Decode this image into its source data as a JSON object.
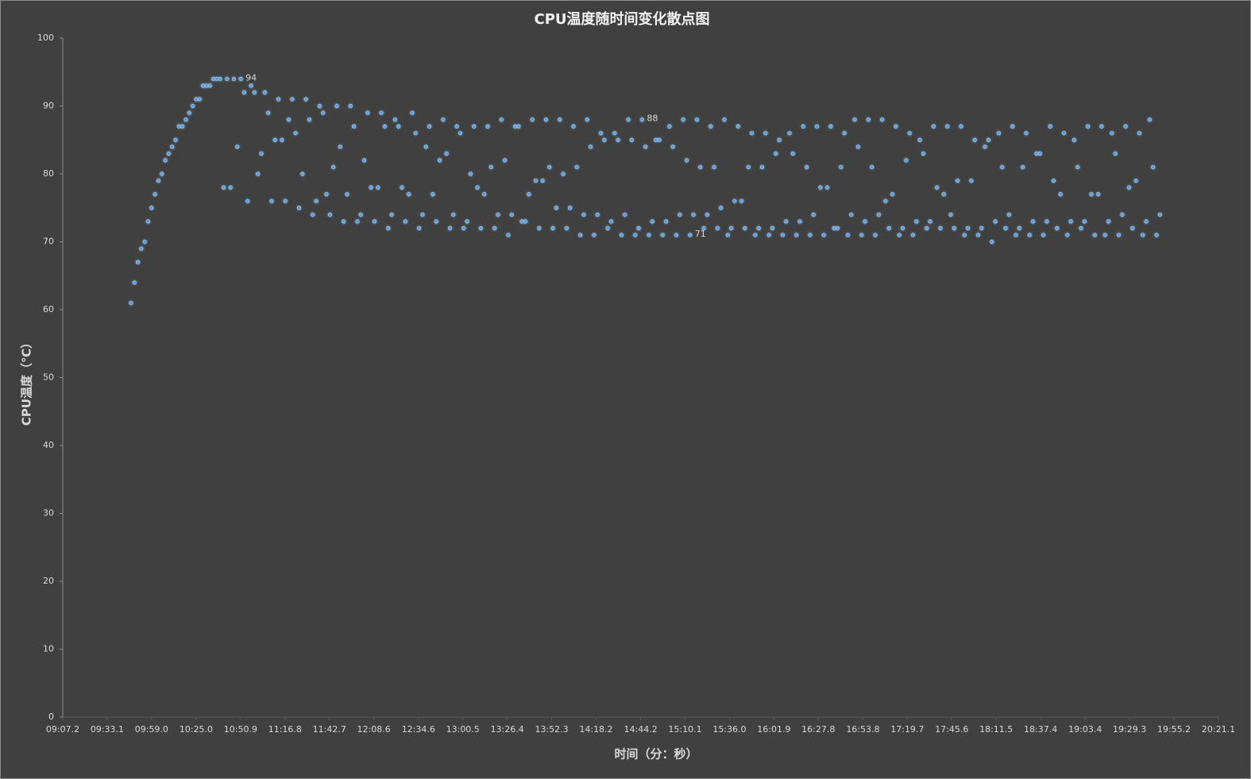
{
  "chart_data": {
    "type": "scatter",
    "title": "CPU温度随时间变化散点图",
    "x_label": "时间（分：秒）",
    "y_label": "CPU温度（℃）",
    "color": "#5b9bd5",
    "xlim": [
      547.2,
      1221.1
    ],
    "xticks": [
      {
        "value": 547.2,
        "label": "09:07.2"
      },
      {
        "value": 573.1,
        "label": "09:33.1"
      },
      {
        "value": 599.0,
        "label": "09:59.0"
      },
      {
        "value": 625.0,
        "label": "10:25.0"
      },
      {
        "value": 650.9,
        "label": "10:50.9"
      },
      {
        "value": 676.8,
        "label": "11:16.8"
      },
      {
        "value": 702.7,
        "label": "11:42.7"
      },
      {
        "value": 728.6,
        "label": "12:08.6"
      },
      {
        "value": 754.6,
        "label": "12:34.6"
      },
      {
        "value": 780.5,
        "label": "13:00.5"
      },
      {
        "value": 806.4,
        "label": "13:26.4"
      },
      {
        "value": 832.3,
        "label": "13:52.3"
      },
      {
        "value": 858.2,
        "label": "14:18.2"
      },
      {
        "value": 884.2,
        "label": "14:44.2"
      },
      {
        "value": 910.1,
        "label": "15:10.1"
      },
      {
        "value": 936.0,
        "label": "15:36.0"
      },
      {
        "value": 961.9,
        "label": "16:01.9"
      },
      {
        "value": 987.8,
        "label": "16:27.8"
      },
      {
        "value": 1013.8,
        "label": "16:53.8"
      },
      {
        "value": 1039.7,
        "label": "17:19.7"
      },
      {
        "value": 1065.6,
        "label": "17:45.6"
      },
      {
        "value": 1091.5,
        "label": "18:11.5"
      },
      {
        "value": 1117.4,
        "label": "18:37.4"
      },
      {
        "value": 1143.4,
        "label": "19:03.4"
      },
      {
        "value": 1169.3,
        "label": "19:29.3"
      },
      {
        "value": 1195.2,
        "label": "19:55.2"
      },
      {
        "value": 1221.1,
        "label": "20:21.1"
      }
    ],
    "ylim": [
      0,
      100
    ],
    "yticks": [
      0,
      10,
      20,
      30,
      40,
      50,
      60,
      70,
      80,
      90,
      100
    ],
    "x": [
      587,
      589,
      591,
      593,
      595,
      597,
      599,
      601,
      603,
      605,
      607,
      609,
      611,
      613,
      615,
      617,
      619,
      621,
      623,
      625,
      627,
      629,
      631,
      633,
      635,
      637,
      639,
      641,
      643,
      645,
      647,
      649,
      651,
      653,
      655,
      657,
      659,
      661,
      663,
      665,
      667,
      669,
      671,
      673,
      675,
      677,
      679,
      681,
      683,
      685,
      687,
      689,
      691,
      693,
      695,
      697,
      699,
      701,
      703,
      705,
      707,
      709,
      711,
      713,
      715,
      717,
      719,
      721,
      723,
      725,
      727,
      729,
      731,
      733,
      735,
      737,
      739,
      741,
      743,
      745,
      747,
      749,
      751,
      753,
      755,
      757,
      759,
      761,
      763,
      765,
      767,
      769,
      771,
      773,
      775,
      777,
      779,
      781,
      783,
      785,
      787,
      789,
      791,
      793,
      795,
      797,
      799,
      801,
      803,
      805,
      807,
      809,
      811,
      813,
      815,
      817,
      819,
      821,
      823,
      825,
      827,
      829,
      831,
      833,
      835,
      837,
      839,
      841,
      843,
      845,
      847,
      849,
      851,
      853,
      855,
      857,
      859,
      861,
      863,
      865,
      867,
      869,
      871,
      873,
      875,
      877,
      879,
      881,
      883,
      885,
      887,
      889,
      891,
      893,
      895,
      897,
      899,
      901,
      903,
      905,
      907,
      909,
      911,
      913,
      915,
      917,
      919,
      921,
      923,
      925,
      927,
      929,
      931,
      933,
      935,
      937,
      939,
      941,
      943,
      945,
      947,
      949,
      951,
      953,
      955,
      957,
      959,
      961,
      963,
      965,
      967,
      969,
      971,
      973,
      975,
      977,
      979,
      981,
      983,
      985,
      987,
      989,
      991,
      993,
      995,
      997,
      999,
      1001,
      1003,
      1005,
      1007,
      1009,
      1011,
      1013,
      1015,
      1017,
      1019,
      1021,
      1023,
      1025,
      1027,
      1029,
      1031,
      1033,
      1035,
      1037,
      1039,
      1041,
      1043,
      1045,
      1047,
      1049,
      1051,
      1053,
      1055,
      1057,
      1059,
      1061,
      1063,
      1065,
      1067,
      1069,
      1071,
      1073,
      1075,
      1077,
      1079,
      1081,
      1083,
      1085,
      1087,
      1089,
      1091,
      1093,
      1095,
      1097,
      1099,
      1101,
      1103,
      1105,
      1107,
      1109,
      1111,
      1113,
      1115,
      1117,
      1119,
      1121,
      1123,
      1125,
      1127,
      1129,
      1131,
      1133,
      1135,
      1137,
      1139,
      1141,
      1143,
      1145,
      1147,
      1149,
      1151,
      1153,
      1155,
      1157,
      1159,
      1161,
      1163,
      1165,
      1167,
      1169,
      1171,
      1173,
      1175,
      1177,
      1179,
      1181,
      1183,
      1185,
      1187
    ],
    "values": [
      61,
      64,
      67,
      69,
      70,
      73,
      75,
      77,
      79,
      80,
      82,
      83,
      84,
      85,
      87,
      87,
      88,
      89,
      90,
      91,
      91,
      93,
      93,
      93,
      94,
      94,
      94,
      78,
      94,
      78,
      94,
      84,
      94,
      92,
      76,
      93,
      92,
      80,
      83,
      92,
      89,
      76,
      85,
      91,
      85,
      76,
      88,
      91,
      86,
      75,
      80,
      91,
      88,
      74,
      76,
      90,
      89,
      77,
      74,
      81,
      90,
      84,
      73,
      77,
      90,
      87,
      73,
      74,
      82,
      89,
      78,
      73,
      78,
      89,
      87,
      72,
      74,
      88,
      87,
      78,
      73,
      77,
      89,
      86,
      72,
      74,
      84,
      87,
      77,
      73,
      82,
      88,
      83,
      72,
      74,
      87,
      86,
      72,
      73,
      80,
      87,
      78,
      72,
      77,
      87,
      81,
      72,
      74,
      88,
      82,
      71,
      74,
      87,
      87,
      73,
      73,
      77,
      88,
      79,
      72,
      79,
      88,
      81,
      72,
      75,
      88,
      80,
      72,
      75,
      87,
      81,
      71,
      74,
      88,
      84,
      71,
      74,
      86,
      85,
      72,
      73,
      86,
      85,
      71,
      74,
      88,
      85,
      71,
      72,
      88,
      84,
      71,
      73,
      85,
      85,
      71,
      73,
      87,
      84,
      71,
      74,
      88,
      82,
      71,
      74,
      88,
      81,
      72,
      74,
      87,
      81,
      72,
      75,
      88,
      71,
      72,
      76,
      87,
      76,
      72,
      81,
      86,
      71,
      72,
      81,
      86,
      71,
      72,
      83,
      85,
      71,
      73,
      86,
      83,
      71,
      73,
      87,
      81,
      71,
      74,
      87,
      78,
      71,
      78,
      87,
      72,
      72,
      81,
      86,
      71,
      74,
      88,
      84,
      71,
      73,
      88,
      81,
      71,
      74,
      88,
      76,
      72,
      77,
      87,
      71,
      72,
      82,
      86,
      71,
      73,
      85,
      83,
      72,
      73,
      87,
      78,
      72,
      77,
      87,
      74,
      72,
      79,
      87,
      71,
      72,
      79,
      85,
      71,
      72,
      84,
      85,
      70,
      73,
      86,
      81,
      72,
      74,
      87,
      71,
      72,
      81,
      86,
      71,
      73,
      83,
      83,
      71,
      73,
      87,
      79,
      72,
      77,
      86,
      71,
      73,
      85,
      81,
      72,
      73,
      87,
      77,
      71,
      77,
      87,
      71,
      73,
      86,
      83,
      71,
      74,
      87,
      78,
      72,
      79,
      86,
      71,
      73,
      88,
      81,
      71,
      74
    ],
    "value_labels": [
      null,
      null,
      null,
      null,
      null,
      null,
      null,
      null,
      null,
      null,
      null,
      null,
      null,
      null,
      null,
      null,
      null,
      null,
      null,
      null,
      null,
      null,
      null,
      null,
      null,
      null,
      null,
      null,
      null,
      null,
      null,
      null,
      "94",
      null,
      null,
      null,
      null,
      null,
      null,
      null,
      null,
      null,
      null,
      null,
      null,
      null,
      null,
      null,
      null,
      null,
      null,
      null,
      null,
      null,
      null,
      null,
      null,
      null,
      null,
      null,
      null,
      null,
      null,
      null,
      null,
      null,
      null,
      null,
      null,
      null,
      null,
      null,
      null,
      null,
      null,
      null,
      null,
      null,
      null,
      null,
      null,
      null,
      null,
      null,
      null,
      null,
      null,
      null,
      null,
      null,
      null,
      null,
      null,
      null,
      null,
      null,
      null,
      null,
      null,
      null,
      null,
      null,
      null,
      null,
      null,
      null,
      null,
      null,
      null,
      null,
      null,
      null,
      null,
      null,
      null,
      null,
      null,
      null,
      null,
      null,
      null,
      null,
      null,
      null,
      null,
      null,
      null,
      null,
      null,
      null,
      null,
      null,
      null,
      null,
      null,
      null,
      null,
      null,
      null,
      null,
      null,
      null,
      null,
      null,
      null,
      null,
      null,
      null,
      null,
      "88",
      null,
      null,
      null,
      null,
      null,
      null,
      null,
      null,
      null,
      null,
      null,
      null,
      null,
      "71",
      null,
      null,
      null,
      null,
      null,
      null,
      null,
      null,
      null,
      null,
      null,
      null,
      null,
      null,
      null,
      null,
      null,
      null,
      null,
      null,
      null,
      null,
      null,
      null,
      null,
      null,
      null,
      null,
      null,
      null,
      null,
      null,
      null,
      null,
      null,
      null,
      null,
      null,
      null,
      null,
      null,
      null,
      null,
      null,
      null,
      null,
      null,
      null,
      null,
      null,
      null,
      null,
      null,
      null,
      null,
      null,
      null,
      null,
      null,
      null,
      null,
      null,
      null,
      null,
      null,
      null,
      null,
      null,
      null,
      null,
      null,
      null,
      null,
      null,
      null,
      null,
      null,
      null,
      null,
      null,
      null,
      null,
      null,
      null,
      null,
      null,
      null,
      null,
      null,
      null,
      null,
      null,
      null,
      null,
      null,
      null,
      null,
      null,
      null,
      null,
      null,
      null,
      null,
      null,
      null,
      null,
      null,
      null,
      null,
      null,
      null,
      null,
      null,
      null,
      null,
      null,
      null,
      null,
      null,
      null,
      null,
      null,
      null,
      null,
      null,
      null,
      null,
      null,
      null,
      null,
      null,
      null,
      null,
      null,
      null,
      null,
      null
    ]
  }
}
